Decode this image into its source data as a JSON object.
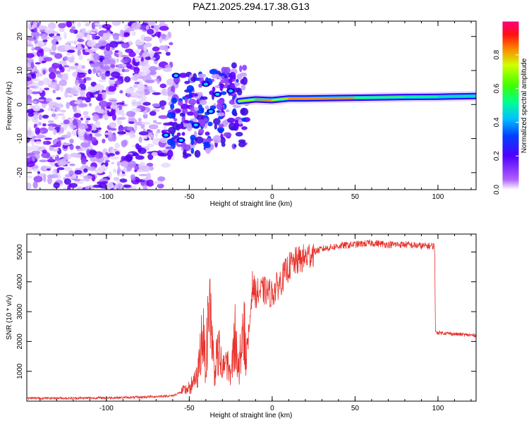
{
  "title": "PAZ1.2025.294.17.38.G13",
  "colors": {
    "axis": "#000000",
    "snr_line": "#e8302a"
  },
  "chart_data": [
    {
      "type": "heatmap",
      "xlabel": "Height of straight line (km)",
      "ylabel": "Frequency (Hz)",
      "xlim": [
        -148,
        123
      ],
      "ylim": [
        -25,
        24.5
      ],
      "x_ticks": [
        -100,
        -50,
        0,
        50,
        100
      ],
      "y_ticks": [
        -20,
        -10,
        0,
        10,
        20
      ],
      "colorbar": {
        "label": "Normalized spectral amplitude",
        "range": [
          0,
          1
        ],
        "ticks": [
          "0.0",
          "0.2",
          "0.4",
          "0.6",
          "0.8"
        ],
        "tick_values": [
          0.0,
          0.2,
          0.4,
          0.6,
          0.8
        ]
      },
      "ridge": [
        {
          "x": -20,
          "freq": 1.0,
          "amplitude": 0.45
        },
        {
          "x": -10,
          "freq": 1.5,
          "amplitude": 0.95
        },
        {
          "x": 0,
          "freq": 1.3,
          "amplitude": 0.6
        },
        {
          "x": 10,
          "freq": 1.8,
          "amplitude": 0.65
        },
        {
          "x": 20,
          "freq": 1.8,
          "amplitude": 0.95
        },
        {
          "x": 50,
          "freq": 2.0,
          "amplitude": 0.6
        },
        {
          "x": 80,
          "freq": 2.2,
          "amplitude": 0.5
        },
        {
          "x": 100,
          "freq": 2.3,
          "amplitude": 0.45
        },
        {
          "x": 123,
          "freq": 2.5,
          "amplitude": 0.42
        }
      ]
    },
    {
      "type": "line",
      "xlabel": "Height of straight line (km)",
      "ylabel": "SNR (10 * v/v)",
      "xlim": [
        -148,
        123
      ],
      "ylim": [
        0,
        5600
      ],
      "x_ticks": [
        -100,
        -50,
        0,
        50,
        100
      ],
      "y_ticks": [
        1000,
        2000,
        3000,
        4000,
        5000
      ],
      "series": [
        {
          "name": "SNR",
          "x": [
            -148,
            -120,
            -100,
            -80,
            -60,
            -55,
            -50,
            -45,
            -42,
            -40,
            -38,
            -35,
            -32,
            -30,
            -28,
            -25,
            -22,
            -20,
            -18,
            -15,
            -12,
            -10,
            -5,
            0,
            5,
            10,
            15,
            20,
            25,
            30,
            40,
            50,
            60,
            70,
            80,
            90,
            98,
            98.5,
            100,
            110,
            123
          ],
          "y": [
            100,
            100,
            110,
            130,
            180,
            300,
            450,
            800,
            2400,
            1100,
            3700,
            1000,
            1700,
            900,
            1500,
            800,
            2300,
            900,
            2700,
            1500,
            3900,
            3600,
            3700,
            3600,
            4000,
            4500,
            4700,
            4800,
            5000,
            5100,
            5200,
            5250,
            5300,
            5250,
            5250,
            5200,
            5200,
            2300,
            2300,
            2250,
            2200
          ]
        }
      ]
    }
  ]
}
